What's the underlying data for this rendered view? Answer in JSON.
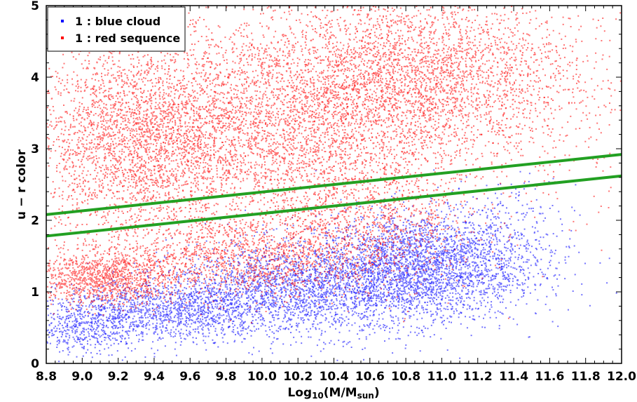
{
  "chart_data": {
    "type": "scatter",
    "xlabel_main": "Log",
    "xlabel_sub": "10",
    "xlabel_rest": "(M/M",
    "xlabel_sub2": "sun",
    "xlabel_end": ")",
    "ylabel": "u − r color",
    "xlim": [
      8.8,
      12.0
    ],
    "ylim": [
      0,
      5
    ],
    "xticks": [
      "8.8",
      "9.0",
      "9.2",
      "9.4",
      "9.6",
      "9.8",
      "10.0",
      "10.2",
      "10.4",
      "10.6",
      "10.8",
      "11.0",
      "11.2",
      "11.4",
      "11.6",
      "11.8",
      "12.0"
    ],
    "yticks": [
      "0",
      "1",
      "2",
      "3",
      "4",
      "5"
    ],
    "legend_position": "top-left",
    "series": [
      {
        "name": "1 : blue cloud",
        "color": "#0000ff",
        "clusters": [
          {
            "cx": 10.85,
            "cy": 1.35,
            "sx": 0.28,
            "sy": 0.38,
            "n": 2600
          },
          {
            "cx": 10.2,
            "cy": 1.05,
            "sx": 0.35,
            "sy": 0.32,
            "n": 2000
          },
          {
            "cx": 9.5,
            "cy": 0.75,
            "sx": 0.3,
            "sy": 0.22,
            "n": 1300
          },
          {
            "cx": 9.0,
            "cy": 0.55,
            "sx": 0.15,
            "sy": 0.2,
            "n": 500
          },
          {
            "cx": 11.3,
            "cy": 1.6,
            "sx": 0.22,
            "sy": 0.45,
            "n": 500
          }
        ]
      },
      {
        "name": "1 : red sequence",
        "color": "#ff0000",
        "clusters": [
          {
            "cx": 9.3,
            "cy": 3.1,
            "sx": 0.3,
            "sy": 0.7,
            "n": 2700
          },
          {
            "cx": 10.1,
            "cy": 3.4,
            "sx": 0.45,
            "sy": 0.75,
            "n": 3300
          },
          {
            "cx": 10.9,
            "cy": 4.0,
            "sx": 0.4,
            "sy": 0.6,
            "n": 2800
          },
          {
            "cx": 9.1,
            "cy": 1.2,
            "sx": 0.2,
            "sy": 0.18,
            "n": 1100
          },
          {
            "cx": 9.9,
            "cy": 1.5,
            "sx": 0.4,
            "sy": 0.3,
            "n": 1400
          },
          {
            "cx": 10.6,
            "cy": 2.0,
            "sx": 0.3,
            "sy": 0.45,
            "n": 900
          },
          {
            "cx": 11.6,
            "cy": 3.8,
            "sx": 0.25,
            "sy": 0.8,
            "n": 300
          }
        ]
      }
    ],
    "lines": [
      {
        "color": "#22a022",
        "x": [
          8.8,
          12.0
        ],
        "y": [
          2.08,
          2.92
        ]
      },
      {
        "color": "#22a022",
        "x": [
          8.8,
          12.0
        ],
        "y": [
          1.78,
          2.62
        ]
      }
    ]
  }
}
